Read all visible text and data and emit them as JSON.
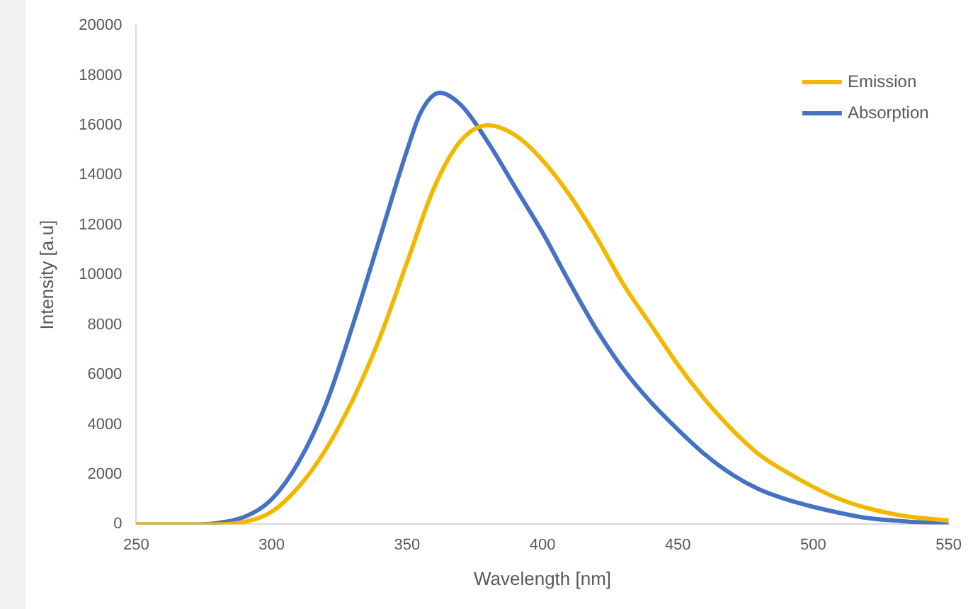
{
  "chart_data": {
    "type": "line",
    "xlabel": "Wavelength [nm]",
    "ylabel": "Intensity [a.u]",
    "xlim": [
      250,
      550
    ],
    "xticks": [
      250,
      300,
      350,
      400,
      450,
      500,
      550
    ],
    "ylim": [
      0,
      20000
    ],
    "yticks": [
      0,
      2000,
      4000,
      6000,
      8000,
      10000,
      12000,
      14000,
      16000,
      18000,
      20000
    ],
    "grid": false,
    "legend": "top right",
    "marker": "none",
    "line_style": "solid",
    "series": [
      {
        "name": "Emission",
        "color": "#f2b800",
        "x": [
          250,
          280,
          290,
          300,
          310,
          320,
          330,
          340,
          350,
          360,
          370,
          380,
          390,
          400,
          410,
          420,
          430,
          440,
          450,
          460,
          470,
          480,
          490,
          500,
          510,
          520,
          530,
          540,
          550
        ],
        "values": [
          0,
          0,
          100,
          500,
          1500,
          3000,
          5000,
          7500,
          10500,
          13500,
          15400,
          16000,
          15600,
          14600,
          13200,
          11500,
          9600,
          8000,
          6400,
          5000,
          3800,
          2800,
          2100,
          1500,
          1000,
          650,
          400,
          250,
          150
        ]
      },
      {
        "name": "Absorption",
        "color": "#4472c4",
        "x": [
          250,
          270,
          280,
          290,
          300,
          310,
          320,
          330,
          340,
          350,
          355,
          362,
          370,
          380,
          390,
          400,
          410,
          420,
          430,
          440,
          450,
          460,
          470,
          480,
          490,
          500,
          510,
          520,
          530,
          540,
          550
        ],
        "values": [
          0,
          0,
          50,
          300,
          1000,
          2500,
          4800,
          8000,
          11500,
          15000,
          16500,
          17300,
          16800,
          15300,
          13500,
          11700,
          9700,
          7800,
          6200,
          4900,
          3800,
          2800,
          2000,
          1400,
          1000,
          700,
          450,
          250,
          150,
          80,
          50
        ]
      }
    ]
  }
}
